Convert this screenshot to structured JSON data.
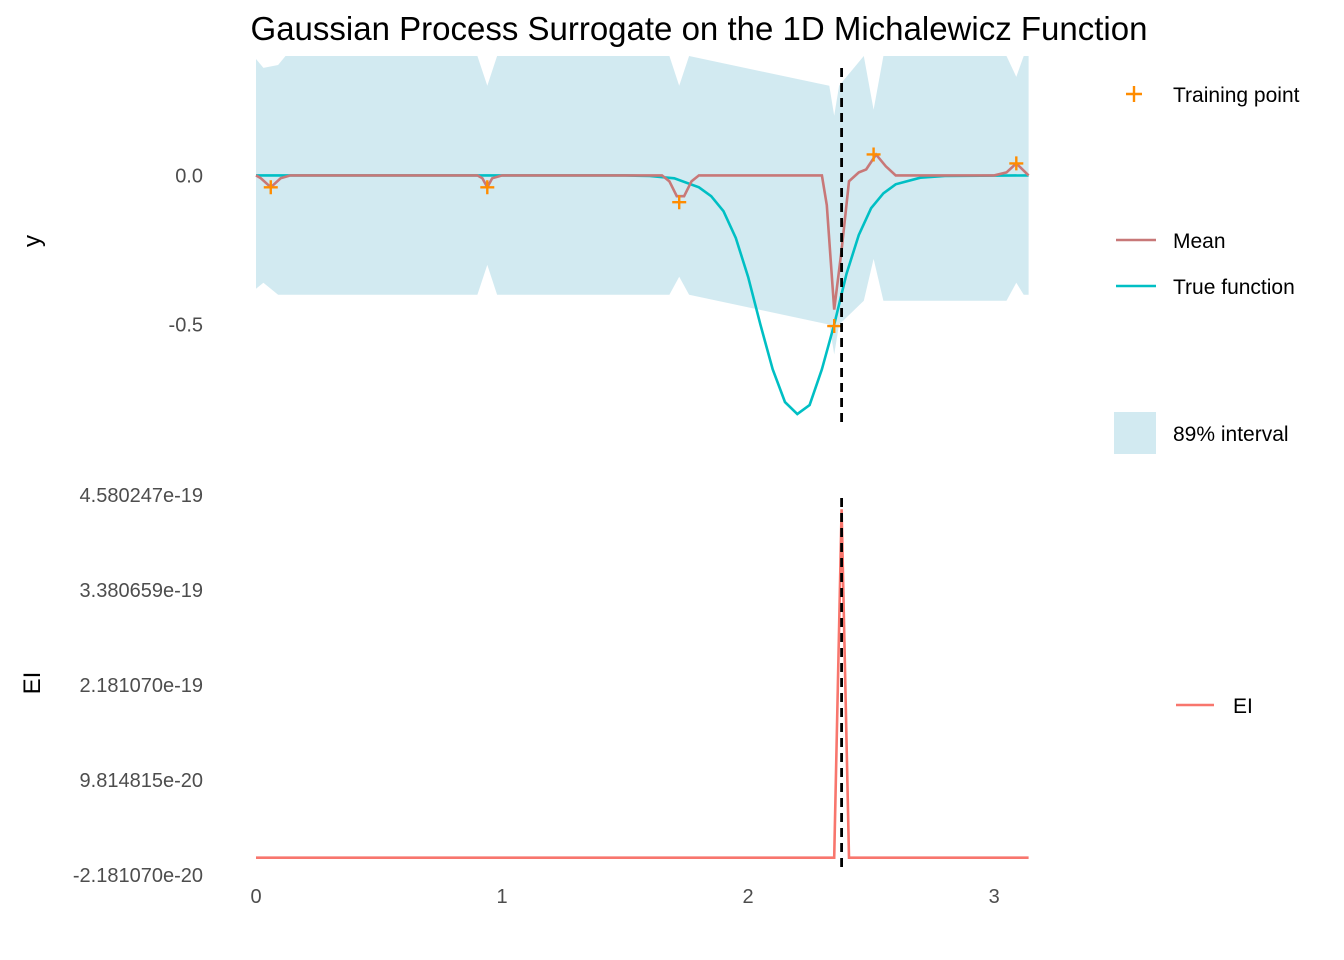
{
  "chart_data": [
    {
      "type": "line",
      "panel": "top",
      "title": "Gaussian Process Surrogate on the 1D Michalewicz Function",
      "ylabel": "y",
      "xlabel": "",
      "xlim": [
        0,
        3.1416
      ],
      "ylim": [
        -0.85,
        0.4
      ],
      "y_ticks": [
        {
          "v": 0.0,
          "label": "0.0"
        },
        {
          "v": -0.5,
          "label": "-0.5"
        }
      ],
      "grid": false,
      "legend_position": "right",
      "series": [
        {
          "name": "True function",
          "color": "#00bfc4",
          "x": [
            0,
            1.0,
            1.5,
            1.6,
            1.7,
            1.8,
            1.85,
            1.9,
            1.95,
            2.0,
            2.05,
            2.1,
            2.15,
            2.2,
            2.25,
            2.3,
            2.35,
            2.4,
            2.45,
            2.5,
            2.55,
            2.6,
            2.7,
            2.8,
            3.14
          ],
          "y": [
            0,
            0,
            0,
            -0.002,
            -0.01,
            -0.04,
            -0.07,
            -0.12,
            -0.21,
            -0.34,
            -0.5,
            -0.65,
            -0.76,
            -0.8,
            -0.77,
            -0.65,
            -0.5,
            -0.33,
            -0.2,
            -0.11,
            -0.06,
            -0.03,
            -0.008,
            -0.002,
            0
          ]
        },
        {
          "name": "Mean",
          "color": "#c87878",
          "x": [
            0,
            0.02,
            0.06,
            0.1,
            0.14,
            0.9,
            0.92,
            0.94,
            0.96,
            1.0,
            1.65,
            1.68,
            1.71,
            1.74,
            1.77,
            1.8,
            2.3,
            2.32,
            2.35,
            2.38,
            2.41,
            2.45,
            2.48,
            2.52,
            2.56,
            2.6,
            3.0,
            3.05,
            3.09,
            3.14
          ],
          "y": [
            0,
            -0.01,
            -0.04,
            -0.01,
            0,
            0,
            -0.01,
            -0.04,
            -0.01,
            0,
            0,
            -0.02,
            -0.07,
            -0.07,
            -0.02,
            0,
            0,
            -0.1,
            -0.45,
            -0.25,
            -0.02,
            0.01,
            0.02,
            0.07,
            0.03,
            0,
            0,
            0.01,
            0.04,
            0
          ]
        }
      ],
      "training_points": {
        "name": "Training point",
        "color": "#ff8c00",
        "x": [
          0.06,
          0.94,
          1.72,
          2.35,
          2.51,
          3.09
        ],
        "y": [
          -0.04,
          -0.04,
          -0.09,
          -0.505,
          0.07,
          0.04
        ]
      },
      "interval": {
        "name": "89% interval",
        "color": "#add8e6",
        "opacity": 0.55,
        "x": [
          0,
          0.03,
          0.09,
          0.12,
          0.9,
          0.94,
          0.98,
          1.68,
          1.72,
          1.76,
          2.33,
          2.35,
          2.37,
          2.47,
          2.51,
          2.55,
          3.05,
          3.09,
          3.12,
          3.14
        ],
        "lower": [
          -0.38,
          -0.36,
          -0.4,
          -0.4,
          -0.4,
          -0.3,
          -0.4,
          -0.4,
          -0.34,
          -0.4,
          -0.5,
          -0.6,
          -0.5,
          -0.42,
          -0.28,
          -0.42,
          -0.42,
          -0.36,
          -0.4,
          -0.4
        ],
        "upper": [
          0.39,
          0.36,
          0.37,
          0.4,
          0.4,
          0.3,
          0.4,
          0.4,
          0.3,
          0.4,
          0.3,
          0.2,
          0.3,
          0.4,
          0.22,
          0.4,
          0.4,
          0.33,
          0.4,
          0.4
        ]
      },
      "vline": {
        "x": 2.38,
        "style": "dashed",
        "color": "#000000"
      }
    },
    {
      "type": "line",
      "panel": "bottom",
      "ylabel": "EI",
      "xlabel": "",
      "xlim": [
        0,
        3.1416
      ],
      "ylim": [
        -2.18107e-20,
        4.580247e-19
      ],
      "x_ticks": [
        {
          "v": 0,
          "label": "0"
        },
        {
          "v": 1,
          "label": "1"
        },
        {
          "v": 2,
          "label": "2"
        },
        {
          "v": 3,
          "label": "3"
        }
      ],
      "y_ticks": [
        {
          "v": 4.580247e-19,
          "label": "4.580247e-19"
        },
        {
          "v": 3.380659e-19,
          "label": "3.380659e-19"
        },
        {
          "v": 2.18107e-19,
          "label": "2.181070e-19"
        },
        {
          "v": 9.814815e-20,
          "label": "9.814815e-20"
        },
        {
          "v": -2.18107e-20,
          "label": "-2.181070e-20"
        }
      ],
      "grid": false,
      "legend_position": "right",
      "series": [
        {
          "name": "EI",
          "color": "#f8766d",
          "x": [
            0,
            2.35,
            2.38,
            2.41,
            3.14
          ],
          "y": [
            0,
            0,
            4.4e-19,
            0,
            0
          ]
        }
      ],
      "vline": {
        "x": 2.38,
        "style": "dashed",
        "color": "#000000"
      }
    }
  ]
}
